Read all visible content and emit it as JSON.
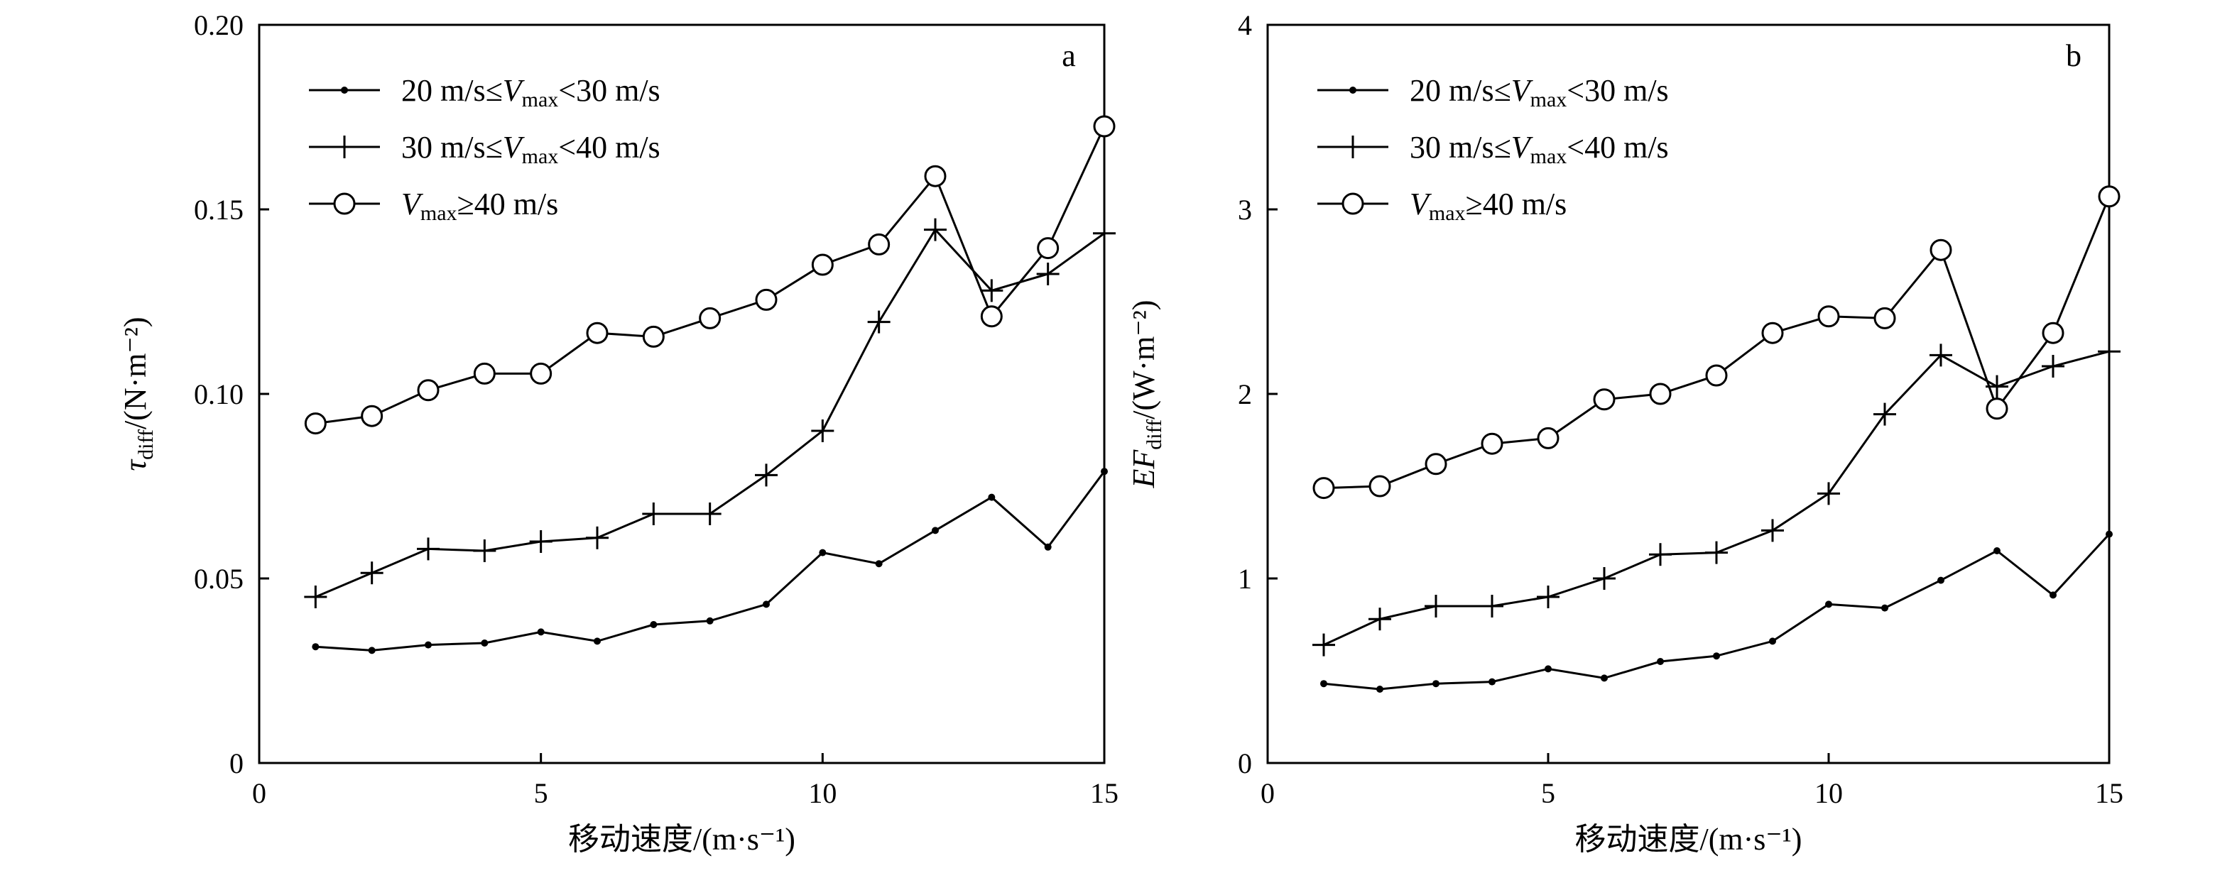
{
  "chart_data": [
    {
      "type": "line",
      "panel_label": "a",
      "xlabel": "移动速度/(m·s⁻¹)",
      "ylabel": "τdiff/(N·m⁻²)",
      "ylabel_parts": {
        "symbol": "τ",
        "sub": "diff",
        "unit": "/(N·m⁻²)"
      },
      "xlim": [
        0,
        15
      ],
      "ylim": [
        0,
        0.2
      ],
      "xticks": [
        0,
        5,
        10,
        15
      ],
      "xtick_labels": [
        "0",
        "5",
        "10",
        "15"
      ],
      "yticks": [
        0,
        0.05,
        0.1,
        0.15,
        0.2
      ],
      "ytick_labels": [
        "0",
        "0.05",
        "0.10",
        "0.15",
        "0.20"
      ],
      "legend_position": "top-left",
      "x": [
        1,
        2,
        3,
        4,
        5,
        6,
        7,
        8,
        9,
        10,
        11,
        12,
        13,
        14,
        15
      ],
      "series": [
        {
          "name": "20 m/s≤Vmax<30 m/s",
          "marker": "dot",
          "values": [
            0.0315,
            0.0305,
            0.032,
            0.0325,
            0.0355,
            0.033,
            0.0375,
            0.0385,
            0.043,
            0.057,
            0.054,
            0.063,
            0.072,
            0.0585,
            0.079
          ]
        },
        {
          "name": "30 m/s≤Vmax<40 m/s",
          "marker": "plus",
          "values": [
            0.045,
            0.0515,
            0.058,
            0.0575,
            0.06,
            0.061,
            0.0675,
            0.0675,
            0.078,
            0.09,
            0.1195,
            0.1445,
            0.128,
            0.1325,
            0.1435
          ]
        },
        {
          "name": "Vmax≥40 m/s",
          "marker": "circle",
          "values": [
            0.092,
            0.094,
            0.101,
            0.1055,
            0.1055,
            0.1165,
            0.1155,
            0.1205,
            0.1255,
            0.135,
            0.1405,
            0.159,
            0.121,
            0.1395,
            0.1725
          ]
        }
      ]
    },
    {
      "type": "line",
      "panel_label": "b",
      "xlabel": "移动速度/(m·s⁻¹)",
      "ylabel": "EFdiff/(W·m⁻²)",
      "ylabel_parts": {
        "symbol": "EF",
        "sub": "diff",
        "unit": "/(W·m⁻²)"
      },
      "xlim": [
        0,
        15
      ],
      "ylim": [
        0,
        4
      ],
      "xticks": [
        0,
        5,
        10,
        15
      ],
      "xtick_labels": [
        "0",
        "5",
        "10",
        "15"
      ],
      "yticks": [
        0,
        1,
        2,
        3,
        4
      ],
      "ytick_labels": [
        "0",
        "1",
        "2",
        "3",
        "4"
      ],
      "legend_position": "top-left",
      "x": [
        1,
        2,
        3,
        4,
        5,
        6,
        7,
        8,
        9,
        10,
        11,
        12,
        13,
        14,
        15
      ],
      "series": [
        {
          "name": "20 m/s≤Vmax<30 m/s",
          "marker": "dot",
          "values": [
            0.43,
            0.4,
            0.43,
            0.44,
            0.51,
            0.46,
            0.55,
            0.58,
            0.66,
            0.86,
            0.84,
            0.99,
            1.15,
            0.91,
            1.24
          ]
        },
        {
          "name": "30 m/s≤Vmax<40 m/s",
          "marker": "plus",
          "values": [
            0.64,
            0.78,
            0.85,
            0.85,
            0.9,
            1.0,
            1.13,
            1.14,
            1.26,
            1.46,
            1.89,
            2.21,
            2.04,
            2.15,
            2.23
          ]
        },
        {
          "name": "Vmax≥40 m/s",
          "marker": "circle",
          "values": [
            1.49,
            1.5,
            1.62,
            1.73,
            1.76,
            1.97,
            2.0,
            2.1,
            2.33,
            2.42,
            2.41,
            2.78,
            1.92,
            2.33,
            3.07
          ]
        }
      ]
    }
  ],
  "legend_parts": [
    {
      "pre": "20 m/s≤",
      "V": "V",
      "sub": "max",
      "post": "<30 m/s"
    },
    {
      "pre": "30 m/s≤",
      "V": "V",
      "sub": "max",
      "post": "<40 m/s"
    },
    {
      "pre": "",
      "V": "V",
      "sub": "max",
      "post": "≥40 m/s"
    }
  ]
}
